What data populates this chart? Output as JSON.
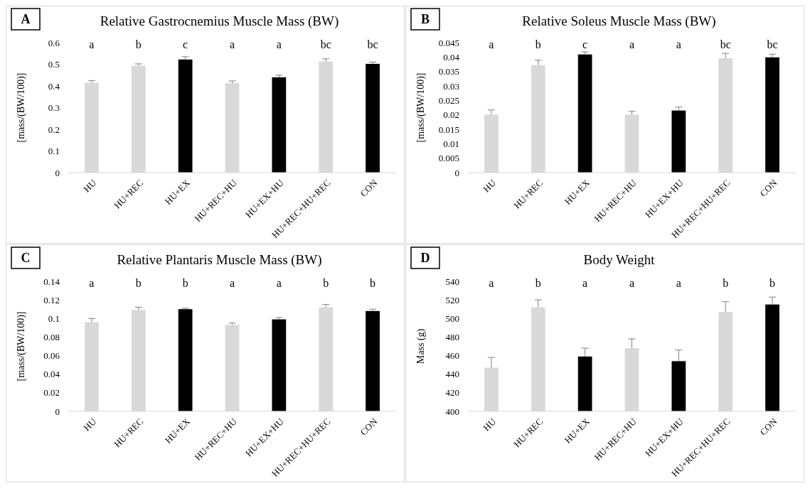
{
  "chart_data": [
    {
      "type": "bar",
      "title": "Relative Gastrocnemius Muscle Mass (BW)",
      "ylabel": "[mass/(BW/100)]",
      "categories": [
        "HU",
        "HU+REC",
        "HU+EX",
        "HU+REC+HU",
        "HU+EX+HU",
        "HU+REC+HU+REC",
        "CON"
      ],
      "values": [
        0.415,
        0.493,
        0.522,
        0.413,
        0.44,
        0.513,
        0.502
      ],
      "colors": [
        "#d9d9d9",
        "#d9d9d9",
        "#000000",
        "#d9d9d9",
        "#000000",
        "#d9d9d9",
        "#000000"
      ],
      "errors": [
        [
          0.415,
          0.425
        ],
        [
          0.493,
          0.502
        ],
        [
          0.522,
          0.535
        ],
        [
          0.413,
          0.423
        ],
        [
          0.44,
          0.45
        ],
        [
          0.513,
          0.525
        ],
        [
          0.502,
          0.51
        ]
      ],
      "ylim": [
        0,
        0.6
      ],
      "yticks": [
        0,
        0.1,
        0.2,
        0.3,
        0.4,
        0.5,
        0.6
      ],
      "annotations": [
        "A",
        "a",
        "b",
        "c",
        "a",
        "a",
        "bc",
        "bc"
      ]
    },
    {
      "type": "bar",
      "title": "Relative Soleus Muscle Mass (BW)",
      "ylabel": "[mass/(BW/100)]",
      "categories": [
        "HU",
        "HU+REC",
        "HU+EX",
        "HU+REC+HU",
        "HU+EX+HU",
        "HU+REC+HU+REC",
        "CON"
      ],
      "values": [
        0.0201,
        0.0372,
        0.0409,
        0.0201,
        0.0215,
        0.0396,
        0.0399
      ],
      "colors": [
        "#d9d9d9",
        "#d9d9d9",
        "#000000",
        "#d9d9d9",
        "#000000",
        "#d9d9d9",
        "#000000"
      ],
      "errors": [
        [
          0.0201,
          0.0217
        ],
        [
          0.0372,
          0.0389
        ],
        [
          0.0409,
          0.0418
        ],
        [
          0.0201,
          0.0212
        ],
        [
          0.0215,
          0.0227
        ],
        [
          0.0396,
          0.0413
        ],
        [
          0.0399,
          0.041
        ]
      ],
      "ylim": [
        0,
        0.045
      ],
      "yticks": [
        0,
        0.005,
        0.01,
        0.015,
        0.02,
        0.025,
        0.03,
        0.035,
        0.04,
        0.045
      ],
      "annotations": [
        "B",
        "a",
        "b",
        "c",
        "a",
        "a",
        "bc",
        "bc"
      ]
    },
    {
      "type": "bar",
      "title": "Relative Plantaris Muscle Mass (BW)",
      "ylabel": "[mass/(BW/100)]",
      "categories": [
        "HU",
        "HU+REC",
        "HU+EX",
        "HU+REC+HU",
        "HU+EX+HU",
        "HU+REC+HU+REC",
        "CON"
      ],
      "values": [
        0.096,
        0.109,
        0.11,
        0.093,
        0.099,
        0.112,
        0.108
      ],
      "colors": [
        "#d9d9d9",
        "#d9d9d9",
        "#000000",
        "#d9d9d9",
        "#000000",
        "#d9d9d9",
        "#000000"
      ],
      "errors": [
        [
          0.096,
          0.1
        ],
        [
          0.109,
          0.112
        ],
        [
          0.11,
          0.111
        ],
        [
          0.093,
          0.095
        ],
        [
          0.099,
          0.101
        ],
        [
          0.112,
          0.115
        ],
        [
          0.108,
          0.11
        ]
      ],
      "ylim": [
        0,
        0.14
      ],
      "yticks": [
        0,
        0.02,
        0.04,
        0.06,
        0.08,
        0.1,
        0.12,
        0.14
      ],
      "annotations": [
        "C",
        "a",
        "b",
        "b",
        "a",
        "a",
        "b",
        "b"
      ]
    },
    {
      "type": "bar",
      "title": "Body Weight",
      "ylabel": "Mass (g)",
      "categories": [
        "HU",
        "HU+REC",
        "HU+EX",
        "HU+REC+HU",
        "HU+EX+HU",
        "HU+REC+HU+REC",
        "CON"
      ],
      "values": [
        447,
        512,
        459,
        468,
        454,
        507,
        515
      ],
      "colors": [
        "#d9d9d9",
        "#d9d9d9",
        "#000000",
        "#d9d9d9",
        "#000000",
        "#d9d9d9",
        "#000000"
      ],
      "errors": [
        [
          447,
          458
        ],
        [
          512,
          520
        ],
        [
          459,
          468
        ],
        [
          468,
          478
        ],
        [
          454,
          466
        ],
        [
          507,
          518
        ],
        [
          515,
          523
        ]
      ],
      "ylim": [
        400,
        540
      ],
      "yticks": [
        400,
        420,
        440,
        460,
        480,
        500,
        520,
        540
      ],
      "annotations": [
        "D",
        "a",
        "b",
        "a",
        "a",
        "a",
        "b",
        "b"
      ]
    }
  ]
}
